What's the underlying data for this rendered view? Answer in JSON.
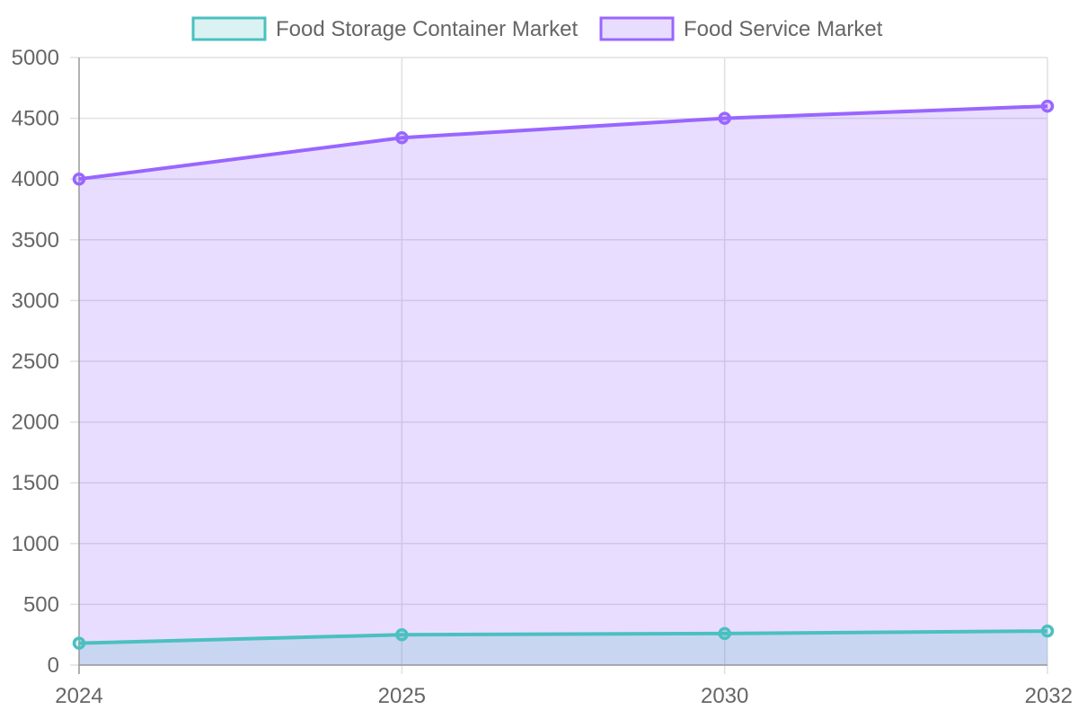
{
  "chart_data": {
    "type": "area",
    "title": "",
    "xlabel": "",
    "ylabel": "",
    "categories": [
      "2024",
      "2025",
      "2030",
      "2032"
    ],
    "ylim": [
      0,
      5000
    ],
    "yticks": [
      0,
      500,
      1000,
      1500,
      2000,
      2500,
      3000,
      3500,
      4000,
      4500,
      5000
    ],
    "grid": true,
    "legend_position": "top",
    "series": [
      {
        "name": "Food Storage Container Market",
        "values": [
          180,
          250,
          260,
          280
        ],
        "line_color": "#4bc0c0",
        "fill_color": "rgba(75,192,192,0.2)"
      },
      {
        "name": "Food Service Market",
        "values": [
          4000,
          4340,
          4500,
          4600
        ],
        "line_color": "#9966ff",
        "fill_color": "rgba(153,102,255,0.22)"
      }
    ]
  }
}
